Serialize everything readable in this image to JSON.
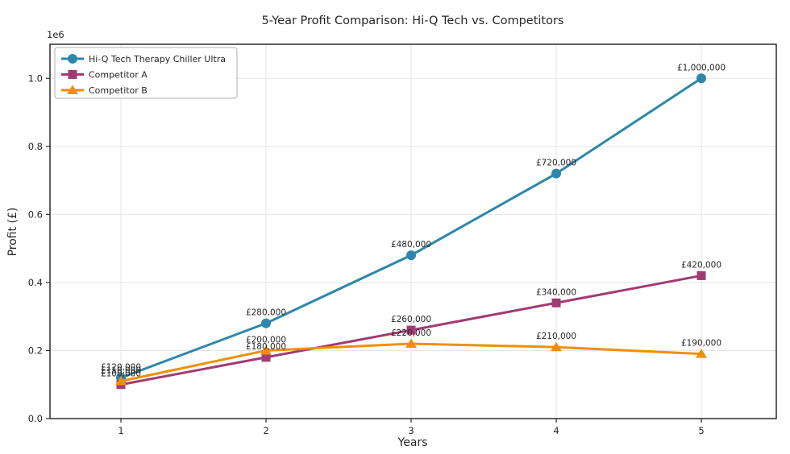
{
  "title": "5-Year Profit Comparison: Hi-Q Tech vs. Competitors",
  "chart_data": {
    "type": "line",
    "x": [
      1,
      2,
      3,
      4,
      5
    ],
    "xlabel": "Years",
    "ylabel": "Profit (£)",
    "y_offset_label": "1e6",
    "ylim": [
      0,
      1100000
    ],
    "yticks_1e6": [
      0.0,
      0.2,
      0.4,
      0.6,
      0.8,
      1.0
    ],
    "grid": true,
    "legend_position": "upper left",
    "series": [
      {
        "name": "Hi-Q Tech Therapy Chiller Ultra",
        "color": "#2E86AB",
        "marker": "circle",
        "values": [
          120000,
          280000,
          480000,
          720000,
          1000000
        ],
        "point_labels": [
          "£120,000",
          "£280,000",
          "£480,000",
          "£720,000",
          "£1,000,000"
        ]
      },
      {
        "name": "Competitor A",
        "color": "#A23B72",
        "marker": "square",
        "values": [
          100000,
          180000,
          260000,
          340000,
          420000
        ],
        "point_labels": [
          "£100,000",
          "£180,000",
          "£260,000",
          "£340,000",
          "£420,000"
        ]
      },
      {
        "name": "Competitor B",
        "color": "#F18F01",
        "marker": "triangle",
        "values": [
          110000,
          200000,
          220000,
          210000,
          190000
        ],
        "point_labels": [
          "£110,000",
          "£200,000",
          "£220,000",
          "£210,000",
          "£190,000"
        ]
      }
    ]
  }
}
